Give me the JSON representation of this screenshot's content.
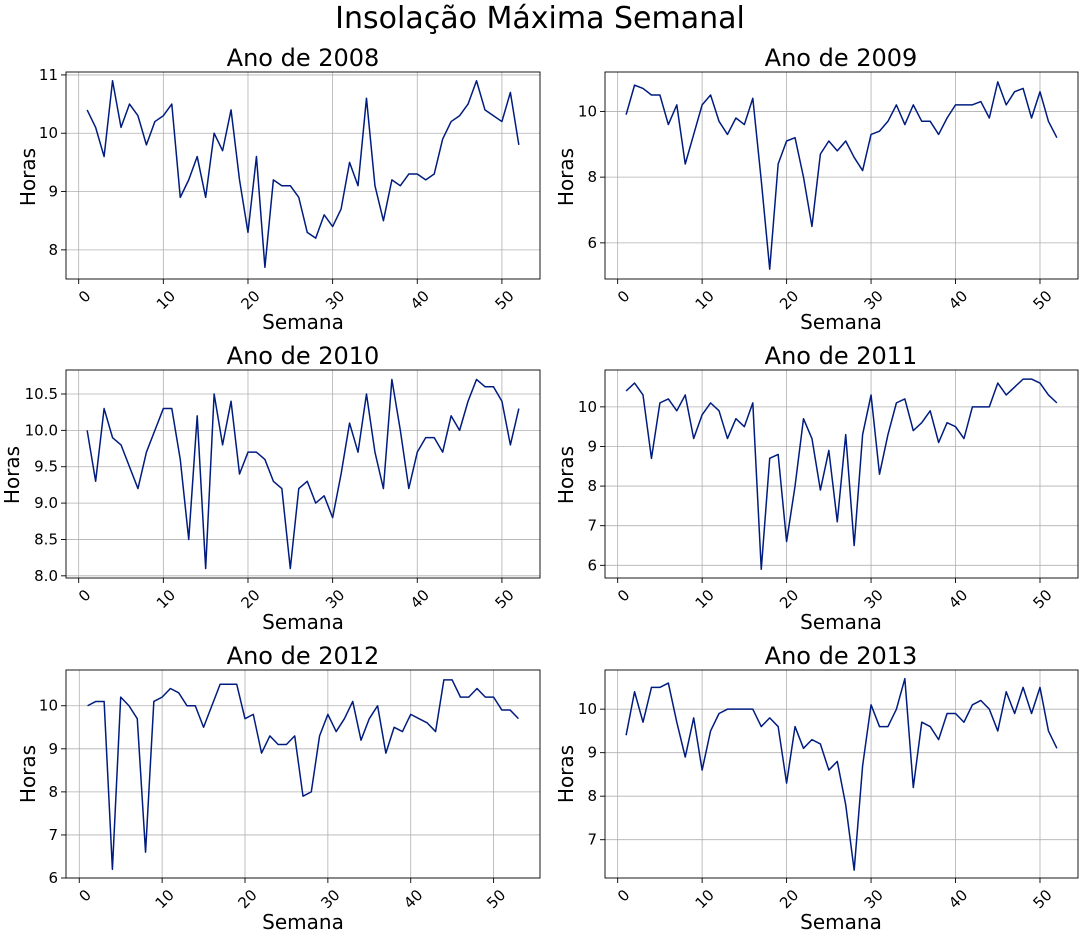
{
  "figure": {
    "title": "Insolação Máxima Semanal",
    "line_color": "#001c7f"
  },
  "chart_data": [
    {
      "type": "line",
      "title": "Ano de 2008",
      "xlabel": "Semana",
      "ylabel": "Horas",
      "xlim": [
        -1.5,
        54.5
      ],
      "ylim": [
        7.5,
        11.05
      ],
      "xticks": [
        0,
        10,
        20,
        30,
        40,
        50
      ],
      "yticks": [
        8,
        9,
        10,
        11
      ],
      "ytick_labels": [
        "8",
        "9",
        "10",
        "11"
      ],
      "grid": true,
      "x": [
        1,
        2,
        3,
        4,
        5,
        6,
        7,
        8,
        9,
        10,
        11,
        12,
        13,
        14,
        15,
        16,
        17,
        18,
        19,
        20,
        21,
        22,
        23,
        24,
        25,
        26,
        27,
        28,
        29,
        30,
        31,
        32,
        33,
        34,
        35,
        36,
        37,
        38,
        39,
        40,
        41,
        42,
        43,
        44,
        45,
        46,
        47,
        48,
        49,
        50,
        51,
        52
      ],
      "y": [
        10.4,
        10.1,
        9.6,
        10.9,
        10.1,
        10.5,
        10.3,
        9.8,
        10.2,
        10.3,
        10.5,
        8.9,
        9.2,
        9.6,
        8.9,
        10.0,
        9.7,
        10.4,
        9.2,
        8.3,
        9.6,
        7.7,
        9.2,
        9.1,
        9.1,
        8.9,
        8.3,
        8.2,
        8.6,
        8.4,
        8.7,
        9.5,
        9.1,
        10.6,
        9.1,
        8.5,
        9.2,
        9.1,
        9.3,
        9.3,
        9.2,
        9.3,
        9.9,
        10.2,
        10.3,
        10.5,
        10.9,
        10.4,
        10.3,
        10.2,
        10.7,
        9.8
      ]
    },
    {
      "type": "line",
      "title": "Ano de 2009",
      "xlabel": "Semana",
      "ylabel": "Horas",
      "xlim": [
        -1.5,
        54.5
      ],
      "ylim": [
        4.9,
        11.2
      ],
      "xticks": [
        0,
        10,
        20,
        30,
        40,
        50
      ],
      "yticks": [
        6,
        8,
        10
      ],
      "ytick_labels": [
        "6",
        "8",
        "10"
      ],
      "grid": true,
      "x": [
        1,
        2,
        3,
        4,
        5,
        6,
        7,
        8,
        9,
        10,
        11,
        12,
        13,
        14,
        15,
        16,
        17,
        18,
        19,
        20,
        21,
        22,
        23,
        24,
        25,
        26,
        27,
        28,
        29,
        30,
        31,
        32,
        33,
        34,
        35,
        36,
        37,
        38,
        39,
        40,
        41,
        42,
        43,
        44,
        45,
        46,
        47,
        48,
        49,
        50,
        51,
        52
      ],
      "y": [
        9.9,
        10.8,
        10.7,
        10.5,
        10.5,
        9.6,
        10.2,
        8.4,
        9.3,
        10.2,
        10.5,
        9.7,
        9.3,
        9.8,
        9.6,
        10.4,
        7.9,
        5.2,
        8.4,
        9.1,
        9.2,
        8.0,
        6.5,
        8.7,
        9.1,
        8.8,
        9.1,
        8.6,
        8.2,
        9.3,
        9.4,
        9.7,
        10.2,
        9.6,
        10.2,
        9.7,
        9.7,
        9.3,
        9.8,
        10.2,
        10.2,
        10.2,
        10.3,
        9.8,
        10.9,
        10.2,
        10.6,
        10.7,
        9.8,
        10.6,
        9.7,
        9.2
      ]
    },
    {
      "type": "line",
      "title": "Ano de 2010",
      "xlabel": "Semana",
      "ylabel": "Horas",
      "xlim": [
        -1.5,
        54.5
      ],
      "ylim": [
        7.97,
        10.83
      ],
      "xticks": [
        0,
        10,
        20,
        30,
        40,
        50
      ],
      "yticks": [
        8.0,
        8.5,
        9.0,
        9.5,
        10.0,
        10.5
      ],
      "ytick_labels": [
        "8.0",
        "8.5",
        "9.0",
        "9.5",
        "10.0",
        "10.5"
      ],
      "grid": true,
      "x": [
        1,
        2,
        3,
        4,
        5,
        6,
        7,
        8,
        9,
        10,
        11,
        12,
        13,
        14,
        15,
        16,
        17,
        18,
        19,
        20,
        21,
        22,
        23,
        24,
        25,
        26,
        27,
        28,
        29,
        30,
        31,
        32,
        33,
        34,
        35,
        36,
        37,
        38,
        39,
        40,
        41,
        42,
        43,
        44,
        45,
        46,
        47,
        48,
        49,
        50,
        51,
        52
      ],
      "y": [
        10.0,
        9.3,
        10.3,
        9.9,
        9.8,
        9.5,
        9.2,
        9.7,
        10.0,
        10.3,
        10.3,
        9.6,
        8.5,
        10.2,
        8.1,
        10.5,
        9.8,
        10.4,
        9.4,
        9.7,
        9.7,
        9.6,
        9.3,
        9.2,
        8.1,
        9.2,
        9.3,
        9.0,
        9.1,
        8.8,
        9.4,
        10.1,
        9.7,
        10.5,
        9.7,
        9.2,
        10.7,
        10.0,
        9.2,
        9.7,
        9.9,
        9.9,
        9.7,
        10.2,
        10.0,
        10.4,
        10.7,
        10.6,
        10.6,
        10.4,
        9.8,
        10.3
      ]
    },
    {
      "type": "line",
      "title": "Ano de 2011",
      "xlabel": "Semana",
      "ylabel": "Horas",
      "xlim": [
        -1.5,
        54.5
      ],
      "ylim": [
        5.68,
        10.93
      ],
      "xticks": [
        0,
        10,
        20,
        30,
        40,
        50
      ],
      "yticks": [
        6,
        7,
        8,
        9,
        10
      ],
      "ytick_labels": [
        "6",
        "7",
        "8",
        "9",
        "10"
      ],
      "grid": true,
      "x": [
        1,
        2,
        3,
        4,
        5,
        6,
        7,
        8,
        9,
        10,
        11,
        12,
        13,
        14,
        15,
        16,
        17,
        18,
        19,
        20,
        21,
        22,
        23,
        24,
        25,
        26,
        27,
        28,
        29,
        30,
        31,
        32,
        33,
        34,
        35,
        36,
        37,
        38,
        39,
        40,
        41,
        42,
        43,
        44,
        45,
        46,
        47,
        48,
        49,
        50,
        51,
        52
      ],
      "y": [
        10.4,
        10.6,
        10.3,
        8.7,
        10.1,
        10.2,
        9.9,
        10.3,
        9.2,
        9.8,
        10.1,
        9.9,
        9.2,
        9.7,
        9.5,
        10.1,
        5.9,
        8.7,
        8.8,
        6.6,
        8.0,
        9.7,
        9.2,
        7.9,
        8.9,
        7.1,
        9.3,
        6.5,
        9.3,
        10.3,
        8.3,
        9.3,
        10.1,
        10.2,
        9.4,
        9.6,
        9.9,
        9.1,
        9.6,
        9.5,
        9.2,
        10.0,
        10.0,
        10.0,
        10.6,
        10.3,
        10.5,
        10.7,
        10.7,
        10.6,
        10.3,
        10.1
      ]
    },
    {
      "type": "line",
      "title": "Ano de 2012",
      "xlabel": "Semana",
      "ylabel": "Horas",
      "xlim": [
        -1.6,
        55.6
      ],
      "ylim": [
        6.0,
        10.83
      ],
      "xticks": [
        0,
        10,
        20,
        30,
        40,
        50
      ],
      "yticks": [
        6,
        7,
        8,
        9,
        10
      ],
      "ytick_labels": [
        "6",
        "7",
        "8",
        "9",
        "10"
      ],
      "grid": true,
      "x": [
        1,
        2,
        3,
        4,
        5,
        6,
        7,
        8,
        9,
        10,
        11,
        12,
        13,
        14,
        15,
        16,
        17,
        18,
        19,
        20,
        21,
        22,
        23,
        24,
        25,
        26,
        27,
        28,
        29,
        30,
        31,
        32,
        33,
        34,
        35,
        36,
        37,
        38,
        39,
        40,
        41,
        42,
        43,
        44,
        45,
        46,
        47,
        48,
        49,
        50,
        51,
        52,
        53
      ],
      "y": [
        10.0,
        10.1,
        10.1,
        6.2,
        10.2,
        10.0,
        9.7,
        6.6,
        10.1,
        10.2,
        10.4,
        10.3,
        10.0,
        10.0,
        9.5,
        10.0,
        10.5,
        10.5,
        10.5,
        9.7,
        9.8,
        8.9,
        9.3,
        9.1,
        9.1,
        9.3,
        7.9,
        8.0,
        9.3,
        9.8,
        9.4,
        9.7,
        10.1,
        9.2,
        9.7,
        10.0,
        8.9,
        9.5,
        9.4,
        9.8,
        9.7,
        9.6,
        9.4,
        10.6,
        10.6,
        10.2,
        10.2,
        10.4,
        10.2,
        10.2,
        9.9,
        9.9,
        9.7
      ]
    },
    {
      "type": "line",
      "title": "Ano de 2013",
      "xlabel": "Semana",
      "ylabel": "Horas",
      "xlim": [
        -1.5,
        54.5
      ],
      "ylim": [
        6.12,
        10.9
      ],
      "xticks": [
        0,
        10,
        20,
        30,
        40,
        50
      ],
      "yticks": [
        7,
        8,
        9,
        10
      ],
      "ytick_labels": [
        "7",
        "8",
        "9",
        "10"
      ],
      "grid": true,
      "x": [
        1,
        2,
        3,
        4,
        5,
        6,
        7,
        8,
        9,
        10,
        11,
        12,
        13,
        14,
        15,
        16,
        17,
        18,
        19,
        20,
        21,
        22,
        23,
        24,
        25,
        26,
        27,
        28,
        29,
        30,
        31,
        32,
        33,
        34,
        35,
        36,
        37,
        38,
        39,
        40,
        41,
        42,
        43,
        44,
        45,
        46,
        47,
        48,
        49,
        50,
        51,
        52
      ],
      "y": [
        9.4,
        10.4,
        9.7,
        10.5,
        10.5,
        10.6,
        9.7,
        8.9,
        9.8,
        8.6,
        9.5,
        9.9,
        10.0,
        10.0,
        10.0,
        10.0,
        9.6,
        9.8,
        9.6,
        8.3,
        9.6,
        9.1,
        9.3,
        9.2,
        8.6,
        8.8,
        7.8,
        6.3,
        8.7,
        10.1,
        9.6,
        9.6,
        10.0,
        10.7,
        8.2,
        9.7,
        9.6,
        9.3,
        9.9,
        9.9,
        9.7,
        10.1,
        10.2,
        10.0,
        9.5,
        10.4,
        9.9,
        10.5,
        9.9,
        10.5,
        9.5,
        9.1
      ]
    }
  ]
}
